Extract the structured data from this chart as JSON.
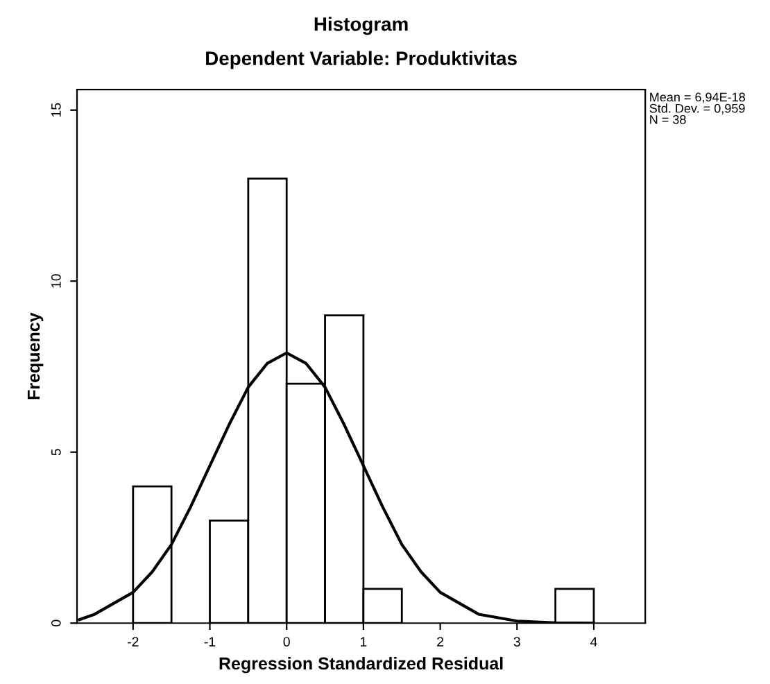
{
  "chart_data": {
    "type": "histogram",
    "title": "Histogram",
    "subtitle": "Dependent Variable: Produktivitas",
    "xlabel": "Regression Standardized Residual",
    "ylabel": "Frequency",
    "bins": [
      -2,
      -1.5,
      -1,
      -0.5,
      0,
      0.5,
      1,
      1.5,
      2,
      2.5,
      3,
      3.5,
      4
    ],
    "values": [
      4,
      0,
      3,
      13,
      7,
      9,
      1,
      0,
      0,
      0,
      0,
      1
    ],
    "color": "#ffffff",
    "series": [
      {
        "type": "line",
        "color": "#000000",
        "x": [
          -2.7,
          -2.5,
          -2,
          -1.75,
          -1.5,
          -1.25,
          -1,
          -0.75,
          -0.5,
          -0.25,
          0,
          0.25,
          0.5,
          0.75,
          1,
          1.25,
          1.5,
          1.75,
          2,
          2.5,
          3,
          3.5,
          4
        ],
        "values": [
          0.1,
          0.26,
          0.9,
          1.5,
          2.3,
          3.4,
          4.6,
          5.8,
          6.9,
          7.6,
          7.9,
          7.6,
          6.9,
          5.8,
          4.6,
          3.4,
          2.3,
          1.5,
          0.9,
          0.26,
          0.06,
          0.01,
          0
        ]
      }
    ],
    "xlim": [
      -2.73,
      4.67
    ],
    "xticks": [
      -2,
      -1,
      0,
      1,
      2,
      3,
      4
    ],
    "ylim": [
      0,
      15.6
    ],
    "yticks": [
      0,
      5,
      10,
      15
    ],
    "annotations": [
      "Mean = 6,94E-18\nStd. Dev. = 0,959\nN = 38"
    ]
  }
}
